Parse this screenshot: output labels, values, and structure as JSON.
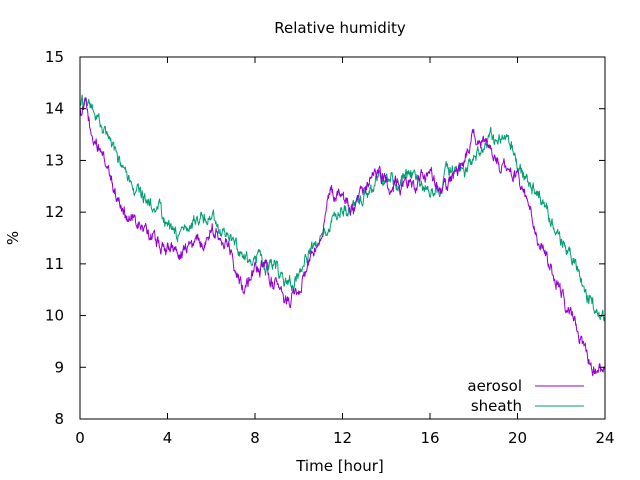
{
  "chart_data": {
    "type": "line",
    "title": "Relative humidity",
    "xlabel": "Time [hour]",
    "ylabel": "%",
    "xlim": [
      0,
      24
    ],
    "ylim": [
      8,
      15
    ],
    "x_ticks": [
      0,
      4,
      8,
      12,
      16,
      20,
      24
    ],
    "y_ticks": [
      8,
      9,
      10,
      11,
      12,
      13,
      14,
      15
    ],
    "grid": false,
    "legend_position": "bottom-right",
    "noise_amplitude": 0.3,
    "series": [
      {
        "name": "aerosol",
        "color": "#9400d3",
        "x": [
          0,
          0.25,
          0.5,
          1,
          1.5,
          2,
          2.5,
          3,
          3.5,
          4,
          4.5,
          5,
          5.5,
          6,
          6.5,
          7,
          7.5,
          8,
          8.5,
          9,
          9.5,
          10,
          10.5,
          11,
          11.5,
          12,
          12.5,
          13,
          13.5,
          14,
          14.5,
          15,
          15.5,
          16,
          16.5,
          17,
          17.5,
          18,
          18.5,
          19,
          19.5,
          20,
          20.5,
          21,
          21.5,
          22,
          22.5,
          23,
          23.5,
          24
        ],
        "values": [
          13.9,
          14.1,
          13.5,
          13.0,
          12.5,
          12.0,
          11.7,
          11.6,
          11.5,
          11.3,
          11.2,
          11.4,
          11.5,
          11.9,
          11.7,
          11.2,
          10.7,
          11.0,
          10.8,
          10.4,
          10.2,
          10.5,
          11.0,
          11.6,
          12.4,
          12.2,
          12.0,
          12.3,
          12.8,
          12.6,
          12.5,
          12.6,
          12.5,
          12.6,
          12.4,
          12.6,
          12.9,
          13.4,
          13.2,
          13.0,
          12.8,
          12.6,
          12.0,
          11.4,
          10.8,
          10.4,
          10.0,
          9.6,
          9.0,
          8.9
        ]
      },
      {
        "name": "sheath",
        "color": "#009e73",
        "x": [
          0,
          0.25,
          0.5,
          1,
          1.5,
          2,
          2.5,
          3,
          3.5,
          4,
          4.5,
          5,
          5.5,
          6,
          6.5,
          7,
          7.5,
          8,
          8.5,
          9,
          9.5,
          10,
          10.5,
          11,
          11.5,
          12,
          12.5,
          13,
          13.5,
          14,
          14.5,
          15,
          15.5,
          16,
          16.5,
          17,
          17.5,
          18,
          18.5,
          19,
          19.5,
          20,
          20.5,
          21,
          21.5,
          22,
          22.5,
          23,
          23.5,
          24
        ],
        "values": [
          14.1,
          14.2,
          14.0,
          13.6,
          13.2,
          12.6,
          12.3,
          12.2,
          12.1,
          11.8,
          11.6,
          11.7,
          11.9,
          12.0,
          11.6,
          11.3,
          11.1,
          11.2,
          11.0,
          10.8,
          10.6,
          10.7,
          11.1,
          11.5,
          11.8,
          12.0,
          12.2,
          12.4,
          12.6,
          12.7,
          12.6,
          12.7,
          12.6,
          12.5,
          12.5,
          12.7,
          12.8,
          13.0,
          13.2,
          13.2,
          13.1,
          12.9,
          12.6,
          12.3,
          11.9,
          11.5,
          11.1,
          10.7,
          10.2,
          9.9
        ]
      }
    ]
  }
}
